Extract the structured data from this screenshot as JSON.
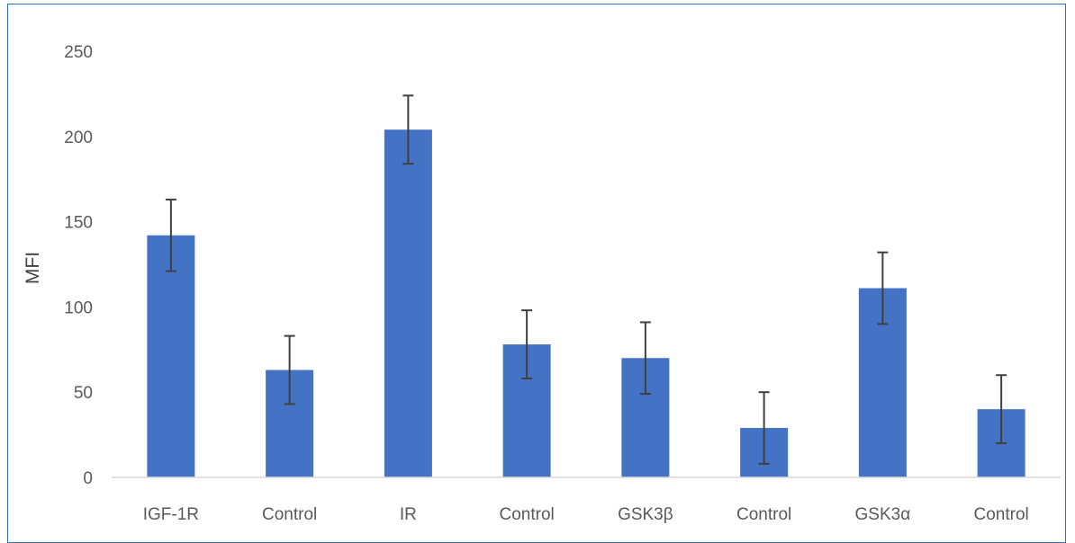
{
  "chart_data": {
    "type": "bar",
    "title": "",
    "xlabel": "",
    "ylabel": "MFI",
    "ylim": [
      0,
      250
    ],
    "yticks": [
      0,
      50,
      100,
      150,
      200,
      250
    ],
    "categories": [
      "IGF-1R",
      "Control",
      "IR",
      "Control",
      "GSK3β",
      "Control",
      "GSK3α",
      "Control"
    ],
    "values": [
      142,
      63,
      204,
      78,
      70,
      29,
      111,
      40
    ],
    "error": [
      21,
      20,
      20,
      20,
      21,
      21,
      21,
      20
    ],
    "grid": false,
    "bar_color": "#4472c4",
    "error_color": "#404040",
    "axis_color": "#d9d9d9"
  }
}
